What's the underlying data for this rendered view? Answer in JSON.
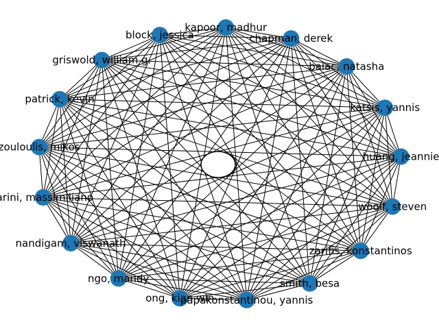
{
  "graph": {
    "type": "complete-graph",
    "node_color": "#1f77b4",
    "edge_color": "#000000",
    "background": "#ffffff",
    "nodes": [
      {
        "label": "kapoor, madhur"
      },
      {
        "label": "chapman, derek"
      },
      {
        "label": "balac, natasha"
      },
      {
        "label": "katsis, yannis"
      },
      {
        "label": "huang, jeannie"
      },
      {
        "label": "woolf, steven"
      },
      {
        "label": "zarifis, konstantinos"
      },
      {
        "label": "smith, besa"
      },
      {
        "label": "papakonstantinou, yannis"
      },
      {
        "label": "ong, kian win"
      },
      {
        "label": "ngo, mandy"
      },
      {
        "label": "nandigam, viswanath"
      },
      {
        "label": "farini, massimiliano"
      },
      {
        "label": "zouloulis, mikos"
      },
      {
        "label": "patrick, kevin"
      },
      {
        "label": "griswold, william g."
      },
      {
        "label": "block, jessica"
      }
    ]
  }
}
